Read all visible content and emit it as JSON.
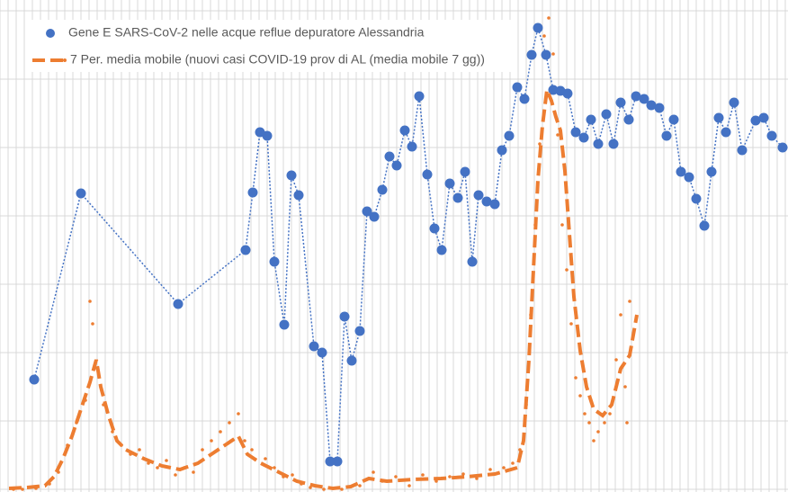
{
  "chart_data": {
    "type": "line",
    "xlim": [
      0,
      876
    ],
    "ylim": [
      0,
      532
    ],
    "yticks": [
      0,
      76,
      152,
      228,
      304,
      380,
      456,
      532
    ],
    "xticks": [
      0,
      9,
      18,
      27,
      36,
      45,
      54,
      63,
      72,
      81,
      90,
      99,
      108,
      117,
      126,
      135,
      144,
      153,
      162,
      171,
      180,
      189,
      198,
      207,
      216,
      225,
      234,
      243,
      252,
      261,
      270,
      279,
      288,
      297,
      306,
      315,
      324,
      333,
      342,
      351,
      360,
      369,
      378,
      387,
      396,
      405,
      414,
      423,
      432,
      441,
      450,
      459,
      468,
      477,
      486,
      495,
      504,
      513,
      522,
      531,
      540,
      549,
      558,
      567,
      576,
      585,
      594,
      603,
      612,
      621,
      630,
      639,
      648,
      657,
      666,
      675,
      684,
      693,
      702,
      711,
      720,
      729,
      738,
      747,
      756,
      765,
      774,
      783,
      792,
      801,
      810,
      819,
      828,
      837,
      846,
      855,
      864,
      873
    ],
    "grid": true,
    "legend": "top-left",
    "series": [
      {
        "name": "Gene E SARS-CoV-2 nelle acque reflue depuratore Alessandria",
        "color": "#4472c4",
        "style": "dotted-markers",
        "x": [
          38,
          90,
          198,
          273,
          281,
          289,
          297,
          305,
          316,
          324,
          332,
          349,
          358,
          367,
          375,
          383,
          391,
          400,
          408,
          416,
          425,
          433,
          441,
          450,
          458,
          466,
          475,
          483,
          491,
          500,
          509,
          517,
          525,
          532,
          541,
          550,
          558,
          566,
          575,
          583,
          591,
          598,
          607,
          615,
          623,
          631,
          640,
          649,
          657,
          665,
          674,
          682,
          690,
          699,
          707,
          716,
          724,
          733,
          741,
          749,
          757,
          766,
          774,
          783,
          791,
          799,
          807,
          816,
          825,
          840,
          849,
          858,
          870
        ],
        "values": [
          122,
          329,
          206,
          266,
          330,
          397,
          393,
          253,
          183,
          349,
          327,
          159,
          152,
          31,
          31,
          192,
          143,
          176,
          309,
          303,
          333,
          370,
          360,
          399,
          381,
          437,
          350,
          290,
          266,
          340,
          324,
          353,
          253,
          327,
          320,
          317,
          377,
          393,
          447,
          434,
          483,
          513,
          483,
          444,
          443,
          440,
          397,
          391,
          411,
          384,
          417,
          384,
          430,
          411,
          437,
          434,
          427,
          424,
          393,
          411,
          353,
          347,
          323,
          293,
          353,
          413,
          397,
          430,
          377,
          410,
          413,
          393,
          380
        ]
      },
      {
        "name": "7 Per. media mobile (nuovi casi COVID-19 prov di AL (media mobile 7 gg))",
        "color": "#ed7d31",
        "style": "dashed",
        "x": [
          10,
          30,
          50,
          60,
          70,
          80,
          90,
          100,
          107,
          112,
          120,
          130,
          140,
          160,
          180,
          200,
          220,
          235,
          250,
          265,
          275,
          290,
          310,
          330,
          350,
          370,
          390,
          410,
          430,
          460,
          490,
          520,
          550,
          575,
          582,
          588,
          593,
          598,
          603,
          608,
          613,
          618,
          623,
          628,
          633,
          638,
          645,
          652,
          660,
          670,
          680,
          690,
          700,
          708
        ],
        "values": [
          1,
          2,
          4,
          14,
          34,
          59,
          89,
          119,
          144,
          114,
          84,
          54,
          44,
          34,
          26,
          22,
          29,
          39,
          49,
          59,
          39,
          29,
          19,
          9,
          4,
          1,
          3,
          12,
          9,
          11,
          12,
          14,
          17,
          24,
          54,
          144,
          244,
          344,
          404,
          444,
          432,
          414,
          399,
          354,
          284,
          214,
          154,
          114,
          89,
          82,
          94,
          134,
          149,
          194
        ]
      },
      {
        "color": "#ed7d31",
        "style": "dots",
        "x": [
          15,
          25,
          40,
          55,
          65,
          75,
          85,
          95,
          100,
          103,
          108,
          115,
          125,
          135,
          145,
          155,
          165,
          175,
          185,
          195,
          205,
          215,
          225,
          235,
          245,
          255,
          265,
          272,
          280,
          295,
          305,
          315,
          325,
          335,
          345,
          360,
          380,
          400,
          415,
          425,
          440,
          455,
          470,
          485,
          500,
          515,
          530,
          545,
          560,
          570,
          578,
          585,
          590,
          595,
          600,
          605,
          610,
          615,
          620,
          625,
          630,
          635,
          640,
          645,
          650,
          655,
          660,
          665,
          672,
          678,
          685,
          690,
          695,
          700,
          697
        ],
        "values": [
          0,
          0,
          1,
          6,
          19,
          49,
          74,
          99,
          209,
          184,
          134,
          94,
          64,
          49,
          39,
          44,
          29,
          24,
          32,
          16,
          24,
          19,
          44,
          54,
          64,
          74,
          84,
          54,
          44,
          34,
          24,
          14,
          16,
          6,
          2,
          0,
          0,
          4,
          19,
          9,
          14,
          4,
          16,
          9,
          14,
          17,
          12,
          22,
          24,
          29,
          44,
          94,
          194,
          294,
          384,
          504,
          524,
          484,
          394,
          294,
          244,
          184,
          124,
          104,
          84,
          74,
          54,
          64,
          74,
          84,
          144,
          194,
          114,
          209,
          74
        ]
      }
    ]
  }
}
